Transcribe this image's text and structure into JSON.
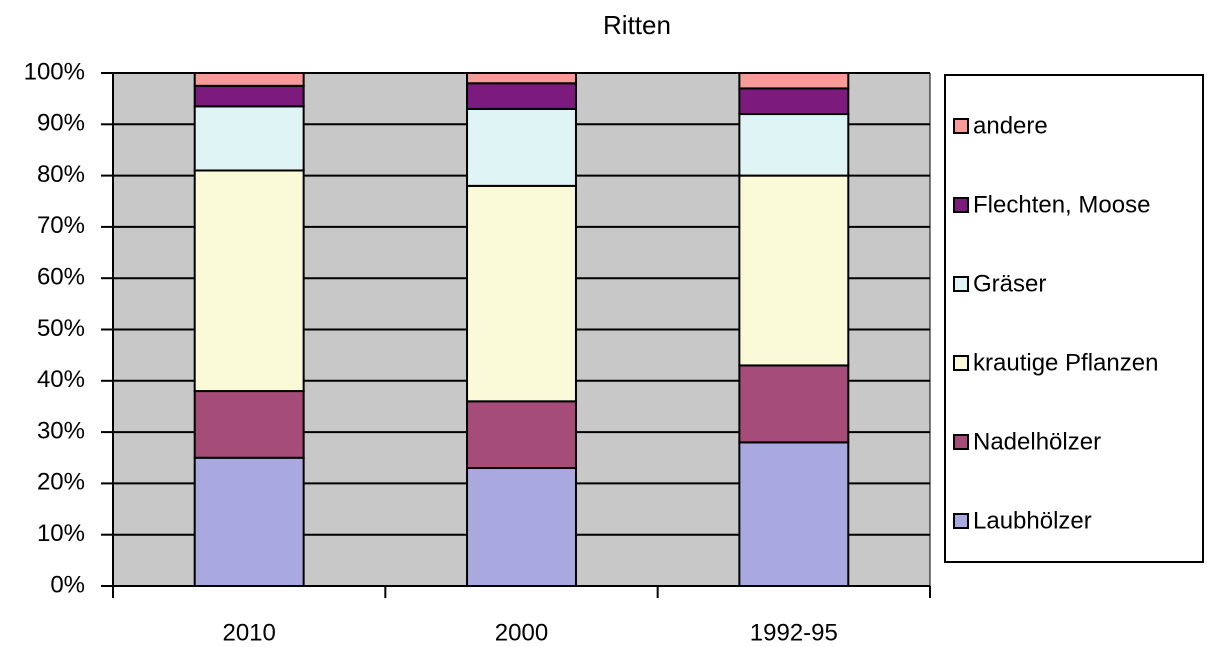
{
  "chart_data": {
    "type": "stacked_bar",
    "title": "Ritten",
    "categories": [
      "2010",
      "2000",
      "1992-95"
    ],
    "series": [
      {
        "name": "Laubhölzer",
        "color": "#a9a9e0",
        "values": [
          25,
          23,
          28
        ]
      },
      {
        "name": "Nadelhölzer",
        "color": "#a64c78",
        "values": [
          13,
          13,
          15
        ]
      },
      {
        "name": "krautige Pflanzen",
        "color": "#fafad8",
        "values": [
          43,
          42,
          37
        ]
      },
      {
        "name": "Gräser",
        "color": "#dff4f4",
        "values": [
          12.5,
          15,
          12
        ]
      },
      {
        "name": "Flechten, Moose",
        "color": "#7d1a7d",
        "values": [
          4,
          5,
          5
        ]
      },
      {
        "name": "andere",
        "color": "#f89b98",
        "values": [
          2.5,
          2,
          3
        ]
      }
    ],
    "ylim": [
      0,
      100
    ],
    "yticks": [
      {
        "value": 0,
        "label": "0%"
      },
      {
        "value": 10,
        "label": "10%"
      },
      {
        "value": 20,
        "label": "20%"
      },
      {
        "value": 30,
        "label": "30%"
      },
      {
        "value": 40,
        "label": "40%"
      },
      {
        "value": 50,
        "label": "50%"
      },
      {
        "value": 60,
        "label": "60%"
      },
      {
        "value": 70,
        "label": "70%"
      },
      {
        "value": 80,
        "label": "80%"
      },
      {
        "value": 90,
        "label": "90%"
      },
      {
        "value": 100,
        "label": "100%"
      }
    ],
    "grid": true,
    "background": "#c8c8c8",
    "legend": "right"
  }
}
